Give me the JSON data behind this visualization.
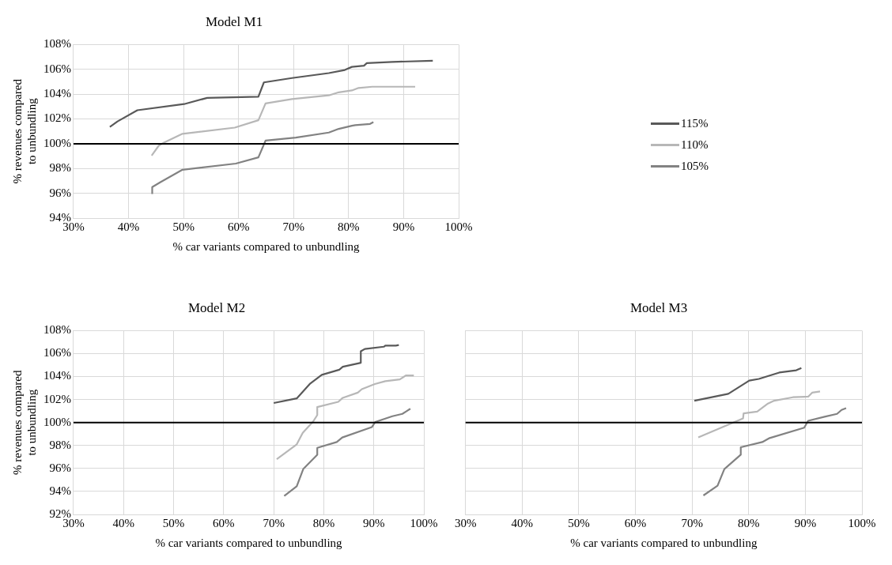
{
  "chart_data": [
    {
      "type": "line",
      "title": "Model M1",
      "xlabel": "% car variants compared to unbundling",
      "ylabel": "% revenues compared to unbundling",
      "xlim": [
        30,
        100
      ],
      "xticks": [
        {
          "value": 30,
          "label": "30%"
        },
        {
          "value": 40,
          "label": "40%"
        },
        {
          "value": 50,
          "label": "50%"
        },
        {
          "value": 60,
          "label": "60%"
        },
        {
          "value": 70,
          "label": "70%"
        },
        {
          "value": 80,
          "label": "80%"
        },
        {
          "value": 90,
          "label": "90%"
        },
        {
          "value": 100,
          "label": "100%"
        }
      ],
      "ylim": [
        94,
        108
      ],
      "yticks": [
        {
          "value": 94,
          "label": "94%"
        },
        {
          "value": 96,
          "label": "96%"
        },
        {
          "value": 98,
          "label": "98%"
        },
        {
          "value": 100,
          "label": "100%"
        },
        {
          "value": 102,
          "label": "102%"
        },
        {
          "value": 104,
          "label": "104%"
        },
        {
          "value": 106,
          "label": "106%"
        },
        {
          "value": 108,
          "label": "108%"
        }
      ],
      "grid": true,
      "legend": "right",
      "marker": "none",
      "line_style": "solid",
      "ref_lines": [
        {
          "axis": "y",
          "value": 100,
          "color": "#000000"
        }
      ],
      "series": [
        {
          "name": "115%",
          "color": "#595959",
          "x": [
            36.6,
            38.0,
            41.6,
            50.1,
            54.3,
            63.6,
            64.6,
            69.7,
            76.4,
            79.3,
            80.6,
            82.8,
            83.3,
            87.9,
            95.3
          ],
          "values": [
            101.35,
            101.8,
            102.7,
            103.2,
            103.7,
            103.8,
            104.95,
            105.3,
            105.7,
            105.95,
            106.2,
            106.3,
            106.5,
            106.6,
            106.7
          ]
        },
        {
          "name": "110%",
          "color": "#b7b7b7",
          "x": [
            44.2,
            45.5,
            46.5,
            49.8,
            59.3,
            63.6,
            64.9,
            69.7,
            76.4,
            78.2,
            80.6,
            81.8,
            84.3,
            92.1
          ],
          "values": [
            99.05,
            99.85,
            100.1,
            100.8,
            101.3,
            101.9,
            103.25,
            103.6,
            103.9,
            104.15,
            104.3,
            104.5,
            104.6,
            104.6
          ]
        },
        {
          "name": "105%",
          "color": "#828282",
          "x": [
            44.3,
            44.3,
            45.8,
            49.8,
            59.5,
            63.6,
            64.9,
            70.4,
            76.4,
            78.2,
            80.6,
            81.2,
            83.9,
            84.5
          ],
          "values": [
            95.95,
            96.5,
            96.9,
            97.9,
            98.4,
            98.9,
            100.25,
            100.5,
            100.9,
            101.2,
            101.45,
            101.5,
            101.6,
            101.75
          ]
        }
      ]
    },
    {
      "type": "line",
      "title": "Model M2",
      "xlabel": "% car variants compared to unbundling",
      "ylabel": "% revenues compared to unbundling",
      "xlim": [
        30,
        100
      ],
      "xticks": [
        {
          "value": 30,
          "label": "30%"
        },
        {
          "value": 40,
          "label": "40%"
        },
        {
          "value": 50,
          "label": "50%"
        },
        {
          "value": 60,
          "label": "60%"
        },
        {
          "value": 70,
          "label": "70%"
        },
        {
          "value": 80,
          "label": "80%"
        },
        {
          "value": 90,
          "label": "90%"
        },
        {
          "value": 100,
          "label": "100%"
        }
      ],
      "ylim": [
        92,
        108
      ],
      "yticks": [
        {
          "value": 92,
          "label": "92%"
        },
        {
          "value": 94,
          "label": "94%"
        },
        {
          "value": 96,
          "label": "96%"
        },
        {
          "value": 98,
          "label": "98%"
        },
        {
          "value": 100,
          "label": "100%"
        },
        {
          "value": 102,
          "label": "102%"
        },
        {
          "value": 104,
          "label": "104%"
        },
        {
          "value": 106,
          "label": "106%"
        },
        {
          "value": 108,
          "label": "108%"
        }
      ],
      "grid": true,
      "marker": "none",
      "line_style": "solid",
      "ref_lines": [
        {
          "axis": "y",
          "value": 100,
          "color": "#000000"
        }
      ],
      "series": [
        {
          "color": "#595959",
          "x": [
            70.0,
            74.6,
            77.3,
            79.6,
            83.1,
            83.8,
            87.4,
            87.4,
            88.2,
            92.0,
            92.3,
            94.4,
            95.0
          ],
          "values": [
            101.7,
            102.1,
            103.4,
            104.15,
            104.6,
            104.85,
            105.2,
            106.2,
            106.4,
            106.6,
            106.7,
            106.7,
            106.75
          ]
        },
        {
          "color": "#b7b7b7",
          "x": [
            70.6,
            74.6,
            75.8,
            77.9,
            78.7,
            78.7,
            82.9,
            83.8,
            86.8,
            87.6,
            90.2,
            92.3,
            95.2,
            96.4,
            98.0
          ],
          "values": [
            96.8,
            98.1,
            99.1,
            100.1,
            100.65,
            101.35,
            101.8,
            102.15,
            102.6,
            102.9,
            103.35,
            103.6,
            103.75,
            104.1,
            104.1
          ]
        },
        {
          "color": "#828282",
          "x": [
            72.1,
            74.6,
            75.9,
            78.7,
            78.7,
            82.6,
            83.7,
            89.6,
            90.3,
            93.7,
            95.7,
            96.6,
            97.3
          ],
          "values": [
            93.6,
            94.45,
            95.95,
            97.2,
            97.8,
            98.3,
            98.7,
            99.6,
            100.05,
            100.55,
            100.75,
            101.0,
            101.2
          ]
        }
      ]
    },
    {
      "type": "line",
      "title": "Model M3",
      "xlabel": "% car variants compared to unbundling",
      "xlim": [
        30,
        100
      ],
      "xticks": [
        {
          "value": 30,
          "label": "30%"
        },
        {
          "value": 40,
          "label": "40%"
        },
        {
          "value": 50,
          "label": "50%"
        },
        {
          "value": 60,
          "label": "60%"
        },
        {
          "value": 70,
          "label": "70%"
        },
        {
          "value": 80,
          "label": "80%"
        },
        {
          "value": 90,
          "label": "90%"
        },
        {
          "value": 100,
          "label": "100%"
        }
      ],
      "ylim": [
        92,
        108
      ],
      "yticks": [
        92,
        94,
        96,
        98,
        100,
        102,
        104,
        106,
        108
      ],
      "tick_labels": "x",
      "grid": true,
      "marker": "none",
      "line_style": "solid",
      "ref_lines": [
        {
          "axis": "y",
          "value": 100,
          "color": "#000000"
        }
      ],
      "series": [
        {
          "color": "#595959",
          "x": [
            70.4,
            76.4,
            80.1,
            81.8,
            85.4,
            88.4,
            89.3
          ],
          "values": [
            101.9,
            102.5,
            103.65,
            103.8,
            104.35,
            104.55,
            104.75
          ]
        },
        {
          "color": "#b7b7b7",
          "x": [
            71.1,
            79.0,
            79.1,
            81.5,
            83.4,
            84.5,
            87.8,
            90.5,
            91.2,
            92.6
          ],
          "values": [
            98.7,
            100.35,
            100.8,
            100.95,
            101.65,
            101.9,
            102.2,
            102.25,
            102.6,
            102.7
          ]
        },
        {
          "color": "#828282",
          "x": [
            72.0,
            74.5,
            75.7,
            78.6,
            78.6,
            82.4,
            83.7,
            89.8,
            90.5,
            93.4,
            95.6,
            96.4,
            97.2
          ],
          "values": [
            93.65,
            94.5,
            95.95,
            97.2,
            97.85,
            98.3,
            98.65,
            99.55,
            100.15,
            100.5,
            100.75,
            101.1,
            101.25
          ]
        }
      ]
    }
  ]
}
